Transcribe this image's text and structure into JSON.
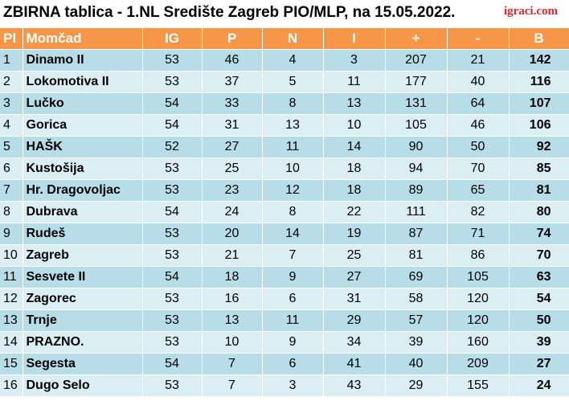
{
  "title": "ZBIRNA tablica - 1.NL Središte Zagreb PIO/MLP, na 15.05.2022.",
  "logo": "igraci.com",
  "colors": {
    "header_bg": "#f79646",
    "row_odd": "#b7dee8",
    "row_even": "#daeef3",
    "logo": "#d9262c"
  },
  "headers": [
    "Pl",
    "Momčad",
    "IG",
    "P",
    "N",
    "I",
    "+",
    "-",
    "B"
  ],
  "rows": [
    [
      "1",
      "Dinamo II",
      "53",
      "46",
      "4",
      "3",
      "207",
      "21",
      "142"
    ],
    [
      "2",
      "Lokomotiva II",
      "53",
      "37",
      "5",
      "11",
      "177",
      "40",
      "116"
    ],
    [
      "3",
      "Lučko",
      "54",
      "33",
      "8",
      "13",
      "131",
      "64",
      "107"
    ],
    [
      "4",
      "Gorica",
      "54",
      "31",
      "13",
      "10",
      "105",
      "46",
      "106"
    ],
    [
      "5",
      "HAŠK",
      "52",
      "27",
      "11",
      "14",
      "90",
      "50",
      "92"
    ],
    [
      "6",
      "Kustošija",
      "53",
      "25",
      "10",
      "18",
      "94",
      "70",
      "85"
    ],
    [
      "7",
      "Hr. Dragovoljac",
      "53",
      "23",
      "12",
      "18",
      "89",
      "65",
      "81"
    ],
    [
      "8",
      "Dubrava",
      "54",
      "24",
      "8",
      "22",
      "111",
      "82",
      "80"
    ],
    [
      "9",
      "Rudeš",
      "53",
      "20",
      "14",
      "19",
      "87",
      "71",
      "74"
    ],
    [
      "10",
      "Zagreb",
      "53",
      "21",
      "7",
      "25",
      "81",
      "86",
      "70"
    ],
    [
      "11",
      "Sesvete II",
      "54",
      "18",
      "9",
      "27",
      "69",
      "105",
      "63"
    ],
    [
      "12",
      "Zagorec",
      "53",
      "16",
      "6",
      "31",
      "58",
      "120",
      "54"
    ],
    [
      "13",
      "Trnje",
      "53",
      "13",
      "11",
      "29",
      "57",
      "120",
      "50"
    ],
    [
      "14",
      "PRAZNO.",
      "53",
      "10",
      "9",
      "34",
      "39",
      "160",
      "39"
    ],
    [
      "15",
      "Segesta",
      "54",
      "7",
      "6",
      "41",
      "40",
      "209",
      "27"
    ],
    [
      "16",
      "Dugo Selo",
      "53",
      "7",
      "3",
      "43",
      "29",
      "155",
      "24"
    ]
  ]
}
